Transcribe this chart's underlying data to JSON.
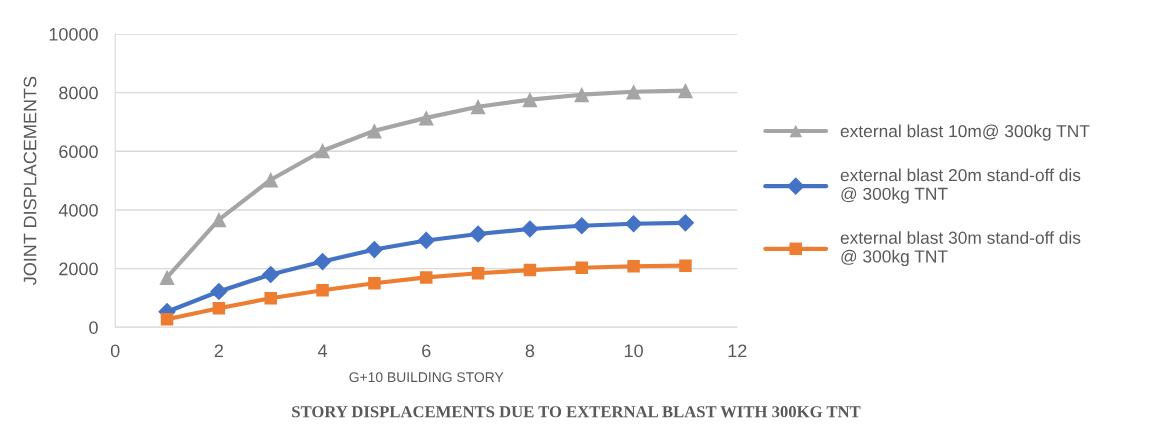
{
  "chart_data": {
    "type": "line",
    "title": "STORY DISPLACEMENTS DUE TO EXTERNAL BLAST WITH 300KG TNT",
    "xlabel": "G+10 BUILDING STORY",
    "ylabel": "JOINT DISPLACEMENTS",
    "x": [
      1,
      2,
      3,
      4,
      5,
      6,
      7,
      8,
      9,
      10,
      11
    ],
    "series": [
      {
        "name": "external blast 10m@ 300kg TNT",
        "color": "#a5a5a5",
        "marker": "triangle",
        "values": [
          1700,
          3670,
          5030,
          6020,
          6700,
          7140,
          7520,
          7760,
          7930,
          8030,
          8070
        ]
      },
      {
        "name": "external blast 20m stand-off dis\n@ 300kg TNT",
        "color": "#4472c4",
        "marker": "diamond",
        "values": [
          530,
          1220,
          1800,
          2240,
          2650,
          2960,
          3180,
          3350,
          3460,
          3530,
          3560
        ]
      },
      {
        "name": "external blast 30m stand-off dis\n@ 300kg TNT",
        "color": "#ed7d31",
        "marker": "square",
        "values": [
          270,
          650,
          990,
          1260,
          1500,
          1700,
          1840,
          1950,
          2030,
          2080,
          2100
        ]
      }
    ],
    "xlim": [
      0,
      12
    ],
    "xticks": [
      0,
      2,
      4,
      6,
      8,
      10,
      12
    ],
    "ylim": [
      0,
      10000
    ],
    "yticks": [
      0,
      2000,
      4000,
      6000,
      8000,
      10000
    ],
    "grid": "y",
    "legend": "right"
  }
}
